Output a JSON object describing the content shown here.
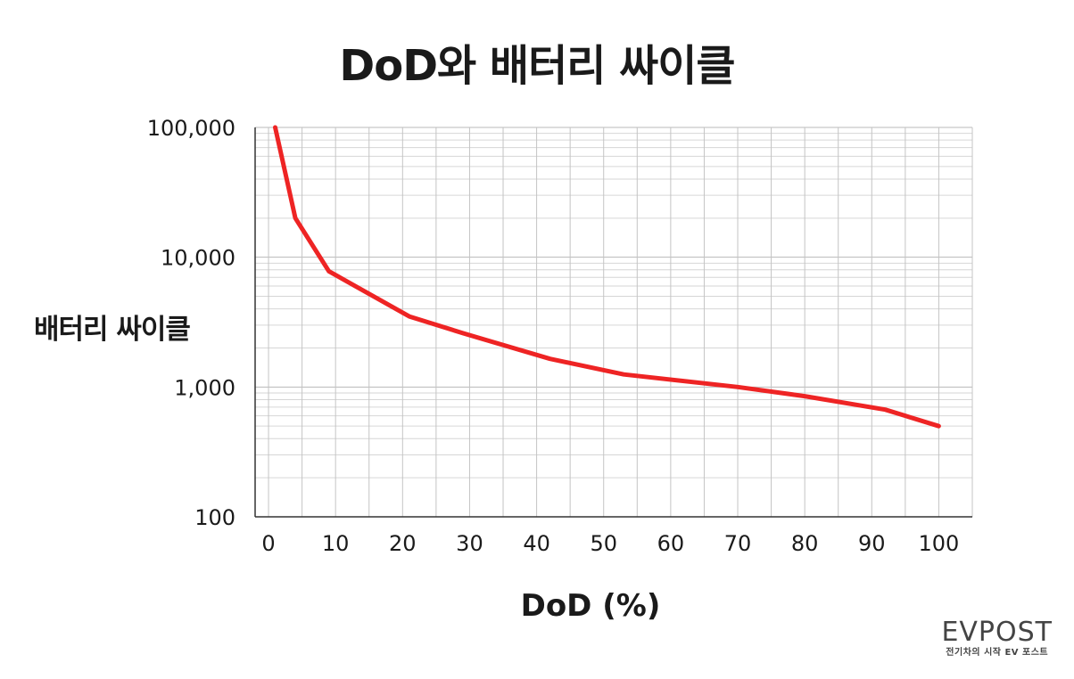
{
  "chart_data": {
    "type": "line",
    "title": "DoD와 배터리 싸이클",
    "xlabel": "DoD (%)",
    "ylabel": "배터리 싸이클",
    "yscale": "log",
    "xlim": [
      -2,
      105
    ],
    "ylim": [
      100,
      100000
    ],
    "grid": true,
    "x_ticks": [
      0,
      10,
      20,
      30,
      40,
      50,
      60,
      70,
      80,
      90,
      100
    ],
    "y_ticks": [
      {
        "value": 100,
        "label": "100"
      },
      {
        "value": 1000,
        "label": "1,000"
      },
      {
        "value": 10000,
        "label": "10,000"
      },
      {
        "value": 100000,
        "label": "100,000"
      }
    ],
    "series": [
      {
        "color": "#ee2424",
        "x": [
          1,
          4,
          9,
          21,
          29,
          42,
          53,
          70,
          80,
          92,
          100
        ],
        "y": [
          100000,
          20000,
          7800,
          3500,
          2600,
          1650,
          1250,
          1000,
          850,
          670,
          500
        ]
      }
    ]
  },
  "logo": {
    "main": "EVPOST",
    "sub": "전기차의 시작 EV 포스트"
  }
}
